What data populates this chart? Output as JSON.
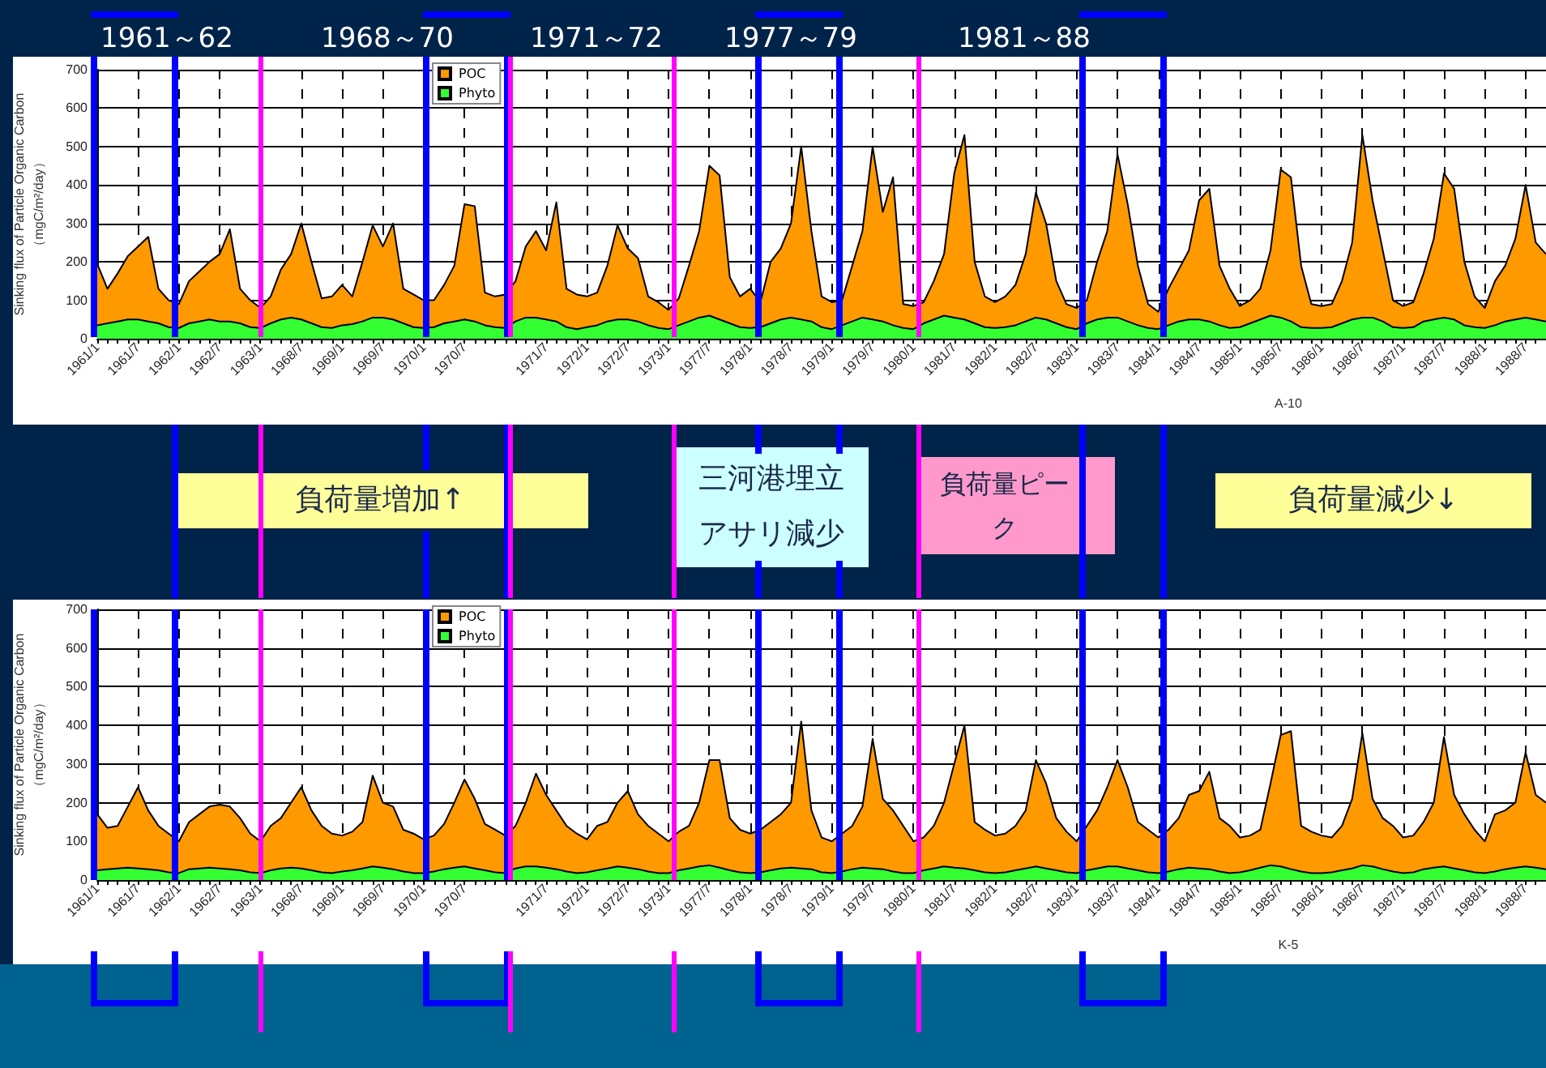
{
  "chart_data": [
    {
      "type": "area",
      "xlabel": "A-10",
      "ylabel": "Sinking flux of Particle Organic Carbon\n（mgC/m²/day）",
      "annotations": [
        "1961～62",
        "1968～70",
        "1971～72",
        "1977～79",
        "1981～88"
      ],
      "categories": [
        "1961/1",
        null,
        null,
        null,
        "1961/7",
        null,
        null,
        null,
        "1962/1",
        null,
        null,
        null,
        "1962/7",
        null,
        null,
        null,
        "1963/1",
        null,
        null,
        null,
        "1968/7",
        null,
        null,
        null,
        "1969/1",
        null,
        null,
        null,
        "1969/7",
        null,
        null,
        null,
        "1970/1",
        null,
        null,
        null,
        "1970/7",
        null,
        null,
        null,
        null,
        null,
        null,
        null,
        "1971/7",
        null,
        null,
        null,
        "1972/1",
        null,
        null,
        null,
        "1972/7",
        null,
        null,
        null,
        "1973/1",
        null,
        null,
        null,
        "1977/7",
        null,
        null,
        null,
        "1978/1",
        null,
        null,
        null,
        "1978/7",
        null,
        null,
        null,
        "1979/1",
        null,
        null,
        null,
        "1979/7",
        null,
        null,
        null,
        "1980/1",
        null,
        null,
        null,
        "1981/7",
        null,
        null,
        null,
        "1982/1",
        null,
        null,
        null,
        "1982/7",
        null,
        null,
        null,
        "1983/1",
        null,
        null,
        null,
        "1983/7",
        null,
        null,
        null,
        "1984/1",
        null,
        null,
        null,
        "1984/7",
        null,
        null,
        null,
        "1985/1",
        null,
        null,
        null,
        "1985/7",
        null,
        null,
        null,
        "1986/1",
        null,
        null,
        null,
        "1986/7",
        null,
        null,
        null,
        "1987/1",
        null,
        null,
        null,
        "1987/7",
        null,
        null,
        null,
        "1988/1",
        null,
        null,
        null,
        "1988/7",
        null,
        null
      ],
      "series": [
        {
          "name": "POC",
          "color": "#ff9900",
          "values": [
            195,
            130,
            170,
            215,
            240,
            265,
            130,
            100,
            90,
            150,
            175,
            200,
            220,
            285,
            130,
            100,
            80,
            110,
            180,
            220,
            300,
            200,
            105,
            110,
            140,
            110,
            200,
            295,
            240,
            300,
            130,
            115,
            100,
            100,
            140,
            190,
            350,
            345,
            120,
            110,
            115,
            150,
            240,
            280,
            230,
            355,
            130,
            115,
            110,
            120,
            190,
            295,
            235,
            210,
            110,
            95,
            75,
            105,
            190,
            280,
            450,
            425,
            160,
            110,
            130,
            95,
            200,
            235,
            300,
            500,
            280,
            110,
            95,
            100,
            190,
            280,
            500,
            330,
            420,
            90,
            85,
            95,
            150,
            220,
            430,
            530,
            200,
            110,
            95,
            110,
            140,
            220,
            380,
            300,
            150,
            90,
            80,
            100,
            200,
            280,
            480,
            350,
            190,
            90,
            70,
            130,
            180,
            230,
            360,
            390,
            190,
            130,
            85,
            100,
            130,
            230,
            440,
            420,
            190,
            90,
            85,
            90,
            150,
            250,
            530,
            360,
            230,
            100,
            85,
            95,
            170,
            260,
            430,
            390,
            200,
            110,
            80,
            150,
            190,
            260,
            400,
            250,
            220
          ]
        },
        {
          "name": "Phyto",
          "color": "#33ff33",
          "values": [
            35,
            40,
            45,
            50,
            50,
            45,
            40,
            30,
            28,
            40,
            45,
            50,
            45,
            45,
            40,
            30,
            28,
            40,
            50,
            55,
            50,
            40,
            30,
            28,
            35,
            38,
            45,
            55,
            55,
            50,
            40,
            30,
            28,
            30,
            40,
            45,
            50,
            45,
            35,
            30,
            28,
            45,
            55,
            55,
            50,
            45,
            30,
            25,
            30,
            35,
            45,
            50,
            50,
            45,
            35,
            28,
            25,
            35,
            45,
            55,
            60,
            50,
            40,
            30,
            28,
            30,
            40,
            50,
            55,
            50,
            45,
            30,
            25,
            35,
            45,
            55,
            50,
            45,
            35,
            28,
            25,
            40,
            50,
            60,
            55,
            50,
            40,
            30,
            28,
            30,
            35,
            45,
            55,
            50,
            40,
            30,
            25,
            40,
            50,
            55,
            55,
            45,
            35,
            28,
            25,
            35,
            45,
            50,
            50,
            45,
            35,
            28,
            30,
            40,
            50,
            60,
            55,
            45,
            30,
            28,
            28,
            30,
            40,
            50,
            55,
            55,
            45,
            30,
            28,
            30,
            45,
            50,
            55,
            50,
            35,
            30,
            28,
            35,
            45,
            50,
            55,
            50,
            45
          ]
        }
      ],
      "ylim": [
        0,
        700
      ],
      "yticks": [
        0,
        100,
        200,
        300,
        400,
        500,
        600,
        700
      ],
      "grid": true,
      "legend": "top"
    },
    {
      "type": "other",
      "annotations": [
        "負荷量増加↑",
        "三河港埋立アサリ減少",
        "負荷量ピーク",
        "負荷量減少↓"
      ]
    },
    {
      "type": "area",
      "xlabel": "K-5",
      "ylabel": "Sinking flux of Particle Organic Carbon\n（mgC/m²/day）",
      "categories": [
        "1961/1",
        null,
        null,
        null,
        "1961/7",
        null,
        null,
        null,
        "1962/1",
        null,
        null,
        null,
        "1962/7",
        null,
        null,
        null,
        "1963/1",
        null,
        null,
        null,
        "1968/7",
        null,
        null,
        null,
        "1969/1",
        null,
        null,
        null,
        "1969/7",
        null,
        null,
        null,
        "1970/1",
        null,
        null,
        null,
        "1970/7",
        null,
        null,
        null,
        null,
        null,
        null,
        null,
        "1971/7",
        null,
        null,
        null,
        "1972/1",
        null,
        null,
        null,
        "1972/7",
        null,
        null,
        null,
        "1973/1",
        null,
        null,
        null,
        "1977/7",
        null,
        null,
        null,
        "1978/1",
        null,
        null,
        null,
        "1978/7",
        null,
        null,
        null,
        "1979/1",
        null,
        null,
        null,
        "1979/7",
        null,
        null,
        null,
        "1980/1",
        null,
        null,
        null,
        "1981/7",
        null,
        null,
        null,
        "1982/1",
        null,
        null,
        null,
        "1982/7",
        null,
        null,
        null,
        "1983/1",
        null,
        null,
        null,
        "1983/7",
        null,
        null,
        null,
        "1984/1",
        null,
        null,
        null,
        "1984/7",
        null,
        null,
        null,
        "1985/1",
        null,
        null,
        null,
        "1985/7",
        null,
        null,
        null,
        "1986/1",
        null,
        null,
        null,
        "1986/7",
        null,
        null,
        null,
        "1987/1",
        null,
        null,
        null,
        "1987/7",
        null,
        null,
        null,
        "1988/1",
        null,
        null,
        null,
        "1988/7",
        null,
        null
      ],
      "series": [
        {
          "name": "POC",
          "color": "#ff9900",
          "values": [
            170,
            135,
            140,
            190,
            240,
            180,
            140,
            120,
            100,
            150,
            170,
            190,
            195,
            190,
            160,
            120,
            100,
            140,
            160,
            200,
            240,
            180,
            140,
            120,
            115,
            125,
            150,
            270,
            200,
            190,
            130,
            120,
            105,
            115,
            145,
            200,
            260,
            210,
            145,
            130,
            115,
            140,
            200,
            275,
            220,
            180,
            140,
            120,
            105,
            140,
            150,
            200,
            230,
            170,
            140,
            120,
            100,
            125,
            140,
            200,
            310,
            310,
            160,
            130,
            120,
            130,
            150,
            170,
            200,
            410,
            180,
            110,
            100,
            120,
            140,
            190,
            365,
            210,
            180,
            140,
            100,
            110,
            140,
            200,
            300,
            400,
            150,
            130,
            115,
            120,
            140,
            180,
            310,
            250,
            160,
            125,
            100,
            140,
            180,
            240,
            310,
            240,
            150,
            130,
            110,
            130,
            160,
            220,
            230,
            280,
            160,
            140,
            110,
            115,
            130,
            250,
            375,
            385,
            140,
            125,
            115,
            110,
            140,
            210,
            380,
            210,
            160,
            140,
            110,
            115,
            150,
            200,
            370,
            220,
            170,
            130,
            100,
            170,
            180,
            200,
            330,
            220,
            200
          ]
        },
        {
          "name": "Phyto",
          "color": "#33ff33",
          "values": [
            25,
            28,
            30,
            32,
            30,
            28,
            25,
            20,
            18,
            28,
            30,
            32,
            30,
            28,
            25,
            20,
            18,
            25,
            30,
            32,
            30,
            25,
            20,
            18,
            22,
            25,
            30,
            35,
            32,
            28,
            22,
            18,
            18,
            22,
            28,
            32,
            35,
            30,
            25,
            20,
            18,
            30,
            35,
            35,
            32,
            28,
            22,
            18,
            20,
            25,
            30,
            35,
            32,
            28,
            22,
            18,
            18,
            25,
            30,
            35,
            38,
            32,
            25,
            20,
            18,
            20,
            25,
            30,
            32,
            30,
            28,
            20,
            18,
            22,
            28,
            32,
            30,
            28,
            22,
            18,
            18,
            25,
            30,
            35,
            32,
            30,
            25,
            20,
            18,
            20,
            25,
            30,
            35,
            30,
            25,
            20,
            18,
            25,
            30,
            35,
            35,
            30,
            25,
            20,
            18,
            22,
            28,
            32,
            30,
            28,
            22,
            18,
            20,
            25,
            32,
            38,
            35,
            28,
            22,
            18,
            18,
            20,
            25,
            30,
            38,
            35,
            28,
            22,
            18,
            20,
            28,
            32,
            35,
            30,
            25,
            20,
            18,
            22,
            28,
            32,
            35,
            32,
            28
          ]
        }
      ],
      "ylim": [
        0,
        700
      ],
      "yticks": [
        0,
        100,
        200,
        300,
        400,
        500,
        600,
        700
      ],
      "grid": true,
      "legend": "top"
    }
  ]
}
